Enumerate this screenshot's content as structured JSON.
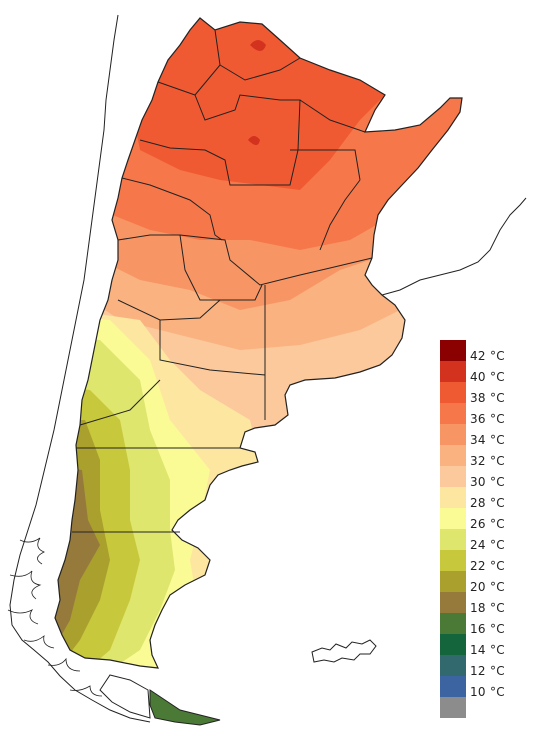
{
  "legend": {
    "entries": [
      {
        "color": "#8b0000",
        "label": "42 °C"
      },
      {
        "color": "#d2321e",
        "label": "40 °C"
      },
      {
        "color": "#f05a32",
        "label": "38 °C"
      },
      {
        "color": "#f6784a",
        "label": "36 °C"
      },
      {
        "color": "#f79664",
        "label": "34 °C"
      },
      {
        "color": "#f9b280",
        "label": "32 °C"
      },
      {
        "color": "#fbc99c",
        "label": "30 °C"
      },
      {
        "color": "#fce6a0",
        "label": "28 °C"
      },
      {
        "color": "#fbfb96",
        "label": "26 °C"
      },
      {
        "color": "#dee66e",
        "label": "24 °C"
      },
      {
        "color": "#c8c83c",
        "label": "22 °C"
      },
      {
        "color": "#aaa02d",
        "label": "20 °C"
      },
      {
        "color": "#957a3c",
        "label": "18 °C"
      },
      {
        "color": "#4b7a37",
        "label": "16 °C"
      },
      {
        "color": "#14643c",
        "label": "14 °C"
      },
      {
        "color": "#32696e",
        "label": "12 °C"
      },
      {
        "color": "#3c64a0",
        "label": "10 °C"
      },
      {
        "color": "#8c8c8c",
        "label": ""
      }
    ]
  },
  "colors": {
    "t40": "#d2321e",
    "t38": "#f05a32",
    "t36": "#f6784a",
    "t34": "#f79664",
    "t32": "#f9b280",
    "t30": "#fbc99c",
    "t28": "#fce6a0",
    "t26": "#fbfb96",
    "t24": "#dee66e",
    "t22": "#c8c83c",
    "t20": "#aaa02d",
    "t18": "#957a3c",
    "t16": "#4b7a37",
    "t14": "#14643c",
    "border": "#222222"
  }
}
